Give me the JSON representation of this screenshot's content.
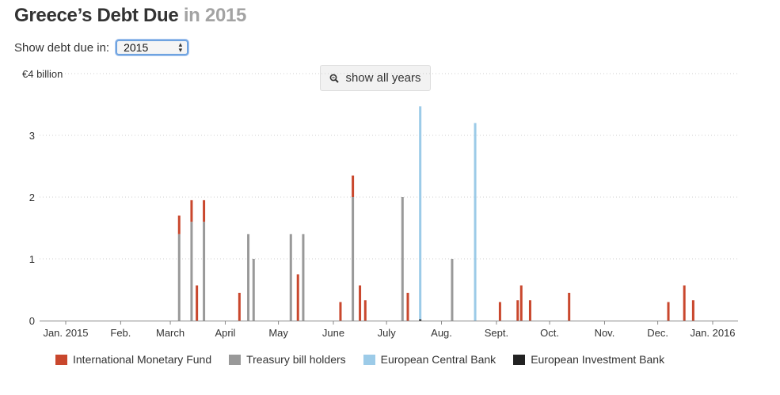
{
  "header": {
    "title_main": "Greece’s Debt Due",
    "title_year": "in 2015"
  },
  "controls": {
    "show_label": "Show debt due in:",
    "selected_year": "2015",
    "show_all_label": "show all years"
  },
  "chart_data": {
    "type": "bar",
    "stacked": true,
    "y_unit_label": "€4 billion",
    "ylim": [
      0,
      4
    ],
    "y_ticks": [
      "0",
      "1",
      "2",
      "3"
    ],
    "x_domain": [
      "2015-01-01",
      "2016-01-01"
    ],
    "x_ticks": [
      {
        "label": "Jan. 2015",
        "date": "2015-01-01"
      },
      {
        "label": "Feb.",
        "date": "2015-02-01"
      },
      {
        "label": "March",
        "date": "2015-03-01"
      },
      {
        "label": "April",
        "date": "2015-04-01"
      },
      {
        "label": "May",
        "date": "2015-05-01"
      },
      {
        "label": "June",
        "date": "2015-06-01"
      },
      {
        "label": "July",
        "date": "2015-07-01"
      },
      {
        "label": "Aug.",
        "date": "2015-08-01"
      },
      {
        "label": "Sept.",
        "date": "2015-09-01"
      },
      {
        "label": "Oct.",
        "date": "2015-10-01"
      },
      {
        "label": "Nov.",
        "date": "2015-11-01"
      },
      {
        "label": "Dec.",
        "date": "2015-12-01"
      },
      {
        "label": "Jan. 2016",
        "date": "2016-01-01"
      }
    ],
    "gridlines": true,
    "legend_position": "bottom",
    "series": [
      {
        "name": "International Monetary Fund",
        "color": "#c9472d"
      },
      {
        "name": "Treasury bill holders",
        "color": "#999999"
      },
      {
        "name": "European Central Bank",
        "color": "#9ccbe8"
      },
      {
        "name": "European Investment Bank",
        "color": "#222222"
      }
    ],
    "bars": [
      {
        "date": "2015-03-06",
        "values": [
          0.3,
          1.4,
          0,
          0
        ]
      },
      {
        "date": "2015-03-13",
        "values": [
          0.35,
          1.6,
          0,
          0
        ]
      },
      {
        "date": "2015-03-16",
        "values": [
          0.57,
          0,
          0,
          0
        ]
      },
      {
        "date": "2015-03-20",
        "values": [
          0.35,
          1.6,
          0,
          0
        ]
      },
      {
        "date": "2015-04-09",
        "values": [
          0.45,
          0,
          0,
          0
        ]
      },
      {
        "date": "2015-04-14",
        "values": [
          0,
          1.4,
          0,
          0
        ]
      },
      {
        "date": "2015-04-17",
        "values": [
          0,
          1.0,
          0,
          0
        ]
      },
      {
        "date": "2015-05-08",
        "values": [
          0,
          1.4,
          0,
          0
        ]
      },
      {
        "date": "2015-05-12",
        "values": [
          0.75,
          0,
          0,
          0
        ]
      },
      {
        "date": "2015-05-15",
        "values": [
          0,
          1.4,
          0,
          0
        ]
      },
      {
        "date": "2015-06-05",
        "values": [
          0.3,
          0,
          0,
          0
        ]
      },
      {
        "date": "2015-06-12",
        "values": [
          0.35,
          2.0,
          0,
          0
        ]
      },
      {
        "date": "2015-06-16",
        "values": [
          0.57,
          0,
          0,
          0
        ]
      },
      {
        "date": "2015-06-19",
        "values": [
          0.33,
          0,
          0,
          0
        ]
      },
      {
        "date": "2015-07-10",
        "values": [
          0,
          2.0,
          0,
          0
        ]
      },
      {
        "date": "2015-07-13",
        "values": [
          0.45,
          0,
          0,
          0
        ]
      },
      {
        "date": "2015-07-20",
        "values": [
          0,
          0,
          3.45,
          0.02
        ]
      },
      {
        "date": "2015-08-07",
        "values": [
          0,
          1.0,
          0,
          0
        ]
      },
      {
        "date": "2015-08-20",
        "values": [
          0,
          0,
          3.2,
          0
        ]
      },
      {
        "date": "2015-09-03",
        "values": [
          0.3,
          0,
          0,
          0
        ]
      },
      {
        "date": "2015-09-13",
        "values": [
          0.33,
          0,
          0,
          0
        ]
      },
      {
        "date": "2015-09-15",
        "values": [
          0.57,
          0,
          0,
          0
        ]
      },
      {
        "date": "2015-09-20",
        "values": [
          0.33,
          0,
          0,
          0
        ]
      },
      {
        "date": "2015-10-12",
        "values": [
          0.45,
          0,
          0,
          0
        ]
      },
      {
        "date": "2015-12-07",
        "values": [
          0.3,
          0,
          0,
          0
        ]
      },
      {
        "date": "2015-12-16",
        "values": [
          0.57,
          0,
          0,
          0
        ]
      },
      {
        "date": "2015-12-21",
        "values": [
          0.33,
          0,
          0,
          0
        ]
      }
    ]
  }
}
